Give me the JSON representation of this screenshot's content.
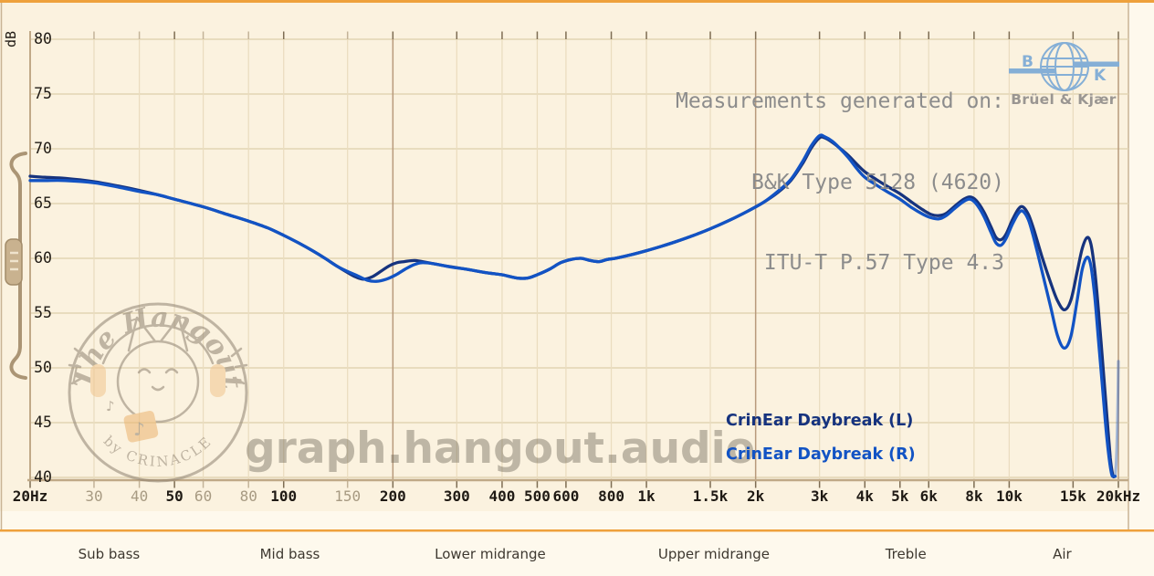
{
  "header": {
    "measurement_info_lines": [
      "Measurements generated on:",
      "B&K Type 5128 (4620)",
      "ITU-T P.57 Type 4.3"
    ]
  },
  "branding": {
    "bk": {
      "letter_left": "B",
      "letter_right": "K",
      "name": "Brüel & Kjær",
      "color": "#85AFD6"
    },
    "watermark_url": "graph.hangout.audio",
    "logo": {
      "arc_text": "The Hangout",
      "sub_text": "by CRINACLE"
    }
  },
  "legend": [
    {
      "label": "CrinEar Daybreak (L)",
      "color": "#16337E"
    },
    {
      "label": "CrinEar Daybreak (R)",
      "color": "#1253C4"
    }
  ],
  "colors": {
    "page_bg": "#FEF9ED",
    "chart_bg": "#FBF2DF",
    "accent_orange": "#EEA13C",
    "axis": "#C0A987",
    "border_tan": "#C9B495",
    "grid_h": "#E2D4B4",
    "grid_minor": "#EADCBF",
    "grid_decade": "#B89A7C",
    "tick_emph": "#7D6C52",
    "tick_minor": "#C3B398"
  },
  "chart_data": {
    "type": "line",
    "title": "",
    "xlabel": "",
    "ylabel": "dB",
    "x_scale": "log",
    "xlim_hz": [
      20,
      20000
    ],
    "ylim": [
      40,
      80
    ],
    "grid": true,
    "y_ticks": [
      80,
      75,
      70,
      65,
      60,
      55,
      50,
      45,
      40
    ],
    "x_ticks": [
      {
        "hz": 20,
        "label": "20Hz",
        "emph": true
      },
      {
        "hz": 30,
        "label": "30",
        "emph": false
      },
      {
        "hz": 40,
        "label": "40",
        "emph": false
      },
      {
        "hz": 50,
        "label": "50",
        "emph": true
      },
      {
        "hz": 60,
        "label": "60",
        "emph": false
      },
      {
        "hz": 80,
        "label": "80",
        "emph": false
      },
      {
        "hz": 100,
        "label": "100",
        "emph": true
      },
      {
        "hz": 150,
        "label": "150",
        "emph": false
      },
      {
        "hz": 200,
        "label": "200",
        "emph": true
      },
      {
        "hz": 300,
        "label": "300",
        "emph": true
      },
      {
        "hz": 400,
        "label": "400",
        "emph": true
      },
      {
        "hz": 500,
        "label": "500",
        "emph": true
      },
      {
        "hz": 600,
        "label": "600",
        "emph": true
      },
      {
        "hz": 800,
        "label": "800",
        "emph": true
      },
      {
        "hz": 1000,
        "label": "1k",
        "emph": true
      },
      {
        "hz": 1500,
        "label": "1.5k",
        "emph": true
      },
      {
        "hz": 2000,
        "label": "2k",
        "emph": true
      },
      {
        "hz": 3000,
        "label": "3k",
        "emph": true
      },
      {
        "hz": 4000,
        "label": "4k",
        "emph": true
      },
      {
        "hz": 5000,
        "label": "5k",
        "emph": true
      },
      {
        "hz": 6000,
        "label": "6k",
        "emph": true
      },
      {
        "hz": 8000,
        "label": "8k",
        "emph": true
      },
      {
        "hz": 10000,
        "label": "10k",
        "emph": true
      },
      {
        "hz": 15000,
        "label": "15k",
        "emph": true
      },
      {
        "hz": 20000,
        "label": "20kHz",
        "emph": true
      }
    ],
    "decade_lines_hz": [
      200,
      2000,
      20000
    ],
    "bands": [
      {
        "label": "Sub bass",
        "hz": 33
      },
      {
        "label": "Mid bass",
        "hz": 104
      },
      {
        "label": "Lower midrange",
        "hz": 371
      },
      {
        "label": "Upper midrange",
        "hz": 1534
      },
      {
        "label": "Treble",
        "hz": 5190
      },
      {
        "label": "Air",
        "hz": 14000
      }
    ],
    "series": [
      {
        "name": "CrinEar Daybreak (L)",
        "channel": "L",
        "color": "#16337E",
        "points": [
          [
            20,
            67.5
          ],
          [
            22,
            67.4
          ],
          [
            25,
            67.3
          ],
          [
            30,
            67.0
          ],
          [
            35,
            66.6
          ],
          [
            40,
            66.2
          ],
          [
            45,
            65.8
          ],
          [
            50,
            65.4
          ],
          [
            60,
            64.7
          ],
          [
            70,
            64.0
          ],
          [
            80,
            63.4
          ],
          [
            90,
            62.8
          ],
          [
            100,
            62.1
          ],
          [
            110,
            61.4
          ],
          [
            120,
            60.7
          ],
          [
            130,
            60.0
          ],
          [
            140,
            59.3
          ],
          [
            150,
            58.7
          ],
          [
            158,
            58.3
          ],
          [
            166,
            58.1
          ],
          [
            175,
            58.3
          ],
          [
            185,
            58.8
          ],
          [
            195,
            59.3
          ],
          [
            205,
            59.6
          ],
          [
            215,
            59.7
          ],
          [
            230,
            59.8
          ],
          [
            250,
            59.6
          ],
          [
            280,
            59.3
          ],
          [
            320,
            59.0
          ],
          [
            360,
            58.7
          ],
          [
            400,
            58.5
          ],
          [
            440,
            58.2
          ],
          [
            470,
            58.2
          ],
          [
            500,
            58.5
          ],
          [
            540,
            59.0
          ],
          [
            580,
            59.6
          ],
          [
            620,
            59.9
          ],
          [
            660,
            60.0
          ],
          [
            700,
            59.8
          ],
          [
            740,
            59.7
          ],
          [
            780,
            59.9
          ],
          [
            820,
            60.0
          ],
          [
            900,
            60.3
          ],
          [
            1000,
            60.7
          ],
          [
            1100,
            61.1
          ],
          [
            1200,
            61.5
          ],
          [
            1350,
            62.1
          ],
          [
            1500,
            62.7
          ],
          [
            1700,
            63.5
          ],
          [
            1900,
            64.3
          ],
          [
            2100,
            65.1
          ],
          [
            2300,
            66.0
          ],
          [
            2500,
            67.1
          ],
          [
            2700,
            68.7
          ],
          [
            2850,
            70.1
          ],
          [
            3000,
            71.0
          ],
          [
            3100,
            71.0
          ],
          [
            3250,
            70.6
          ],
          [
            3400,
            70.1
          ],
          [
            3600,
            69.4
          ],
          [
            3800,
            68.6
          ],
          [
            4000,
            67.9
          ],
          [
            4300,
            67.2
          ],
          [
            4600,
            66.6
          ],
          [
            5000,
            65.9
          ],
          [
            5400,
            65.1
          ],
          [
            5800,
            64.4
          ],
          [
            6100,
            64.0
          ],
          [
            6400,
            63.9
          ],
          [
            6700,
            64.1
          ],
          [
            7100,
            64.8
          ],
          [
            7500,
            65.4
          ],
          [
            7800,
            65.6
          ],
          [
            8100,
            65.3
          ],
          [
            8500,
            64.3
          ],
          [
            8900,
            62.9
          ],
          [
            9200,
            61.9
          ],
          [
            9500,
            61.7
          ],
          [
            9800,
            62.2
          ],
          [
            10200,
            63.5
          ],
          [
            10600,
            64.5
          ],
          [
            10900,
            64.7
          ],
          [
            11300,
            64.0
          ],
          [
            11700,
            62.6
          ],
          [
            12300,
            60.2
          ],
          [
            13000,
            57.8
          ],
          [
            13600,
            56.1
          ],
          [
            14200,
            55.3
          ],
          [
            14800,
            56.2
          ],
          [
            15400,
            58.8
          ],
          [
            15900,
            60.9
          ],
          [
            16400,
            61.9
          ],
          [
            16800,
            61.3
          ],
          [
            17200,
            59.0
          ],
          [
            17600,
            55.5
          ],
          [
            18100,
            50.5
          ],
          [
            18600,
            45.5
          ],
          [
            19000,
            41.8
          ],
          [
            19300,
            40.2
          ],
          [
            19500,
            40.1
          ]
        ]
      },
      {
        "name": "CrinEar Daybreak (R)",
        "channel": "R",
        "color": "#1253C4",
        "points": [
          [
            20,
            67.1
          ],
          [
            22,
            67.1
          ],
          [
            25,
            67.1
          ],
          [
            30,
            66.9
          ],
          [
            35,
            66.5
          ],
          [
            40,
            66.1
          ],
          [
            45,
            65.8
          ],
          [
            50,
            65.4
          ],
          [
            60,
            64.7
          ],
          [
            70,
            64.0
          ],
          [
            80,
            63.4
          ],
          [
            90,
            62.8
          ],
          [
            100,
            62.1
          ],
          [
            110,
            61.4
          ],
          [
            120,
            60.7
          ],
          [
            130,
            60.0
          ],
          [
            140,
            59.3
          ],
          [
            150,
            58.8
          ],
          [
            160,
            58.4
          ],
          [
            170,
            58.0
          ],
          [
            180,
            57.9
          ],
          [
            192,
            58.1
          ],
          [
            204,
            58.5
          ],
          [
            216,
            59.0
          ],
          [
            228,
            59.4
          ],
          [
            240,
            59.6
          ],
          [
            260,
            59.5
          ],
          [
            290,
            59.2
          ],
          [
            320,
            59.0
          ],
          [
            360,
            58.7
          ],
          [
            400,
            58.5
          ],
          [
            440,
            58.2
          ],
          [
            470,
            58.2
          ],
          [
            500,
            58.5
          ],
          [
            540,
            59.0
          ],
          [
            580,
            59.6
          ],
          [
            620,
            59.9
          ],
          [
            660,
            60.0
          ],
          [
            700,
            59.8
          ],
          [
            740,
            59.7
          ],
          [
            780,
            59.9
          ],
          [
            820,
            60.0
          ],
          [
            900,
            60.3
          ],
          [
            1000,
            60.7
          ],
          [
            1100,
            61.1
          ],
          [
            1200,
            61.5
          ],
          [
            1350,
            62.1
          ],
          [
            1500,
            62.7
          ],
          [
            1700,
            63.5
          ],
          [
            1900,
            64.3
          ],
          [
            2100,
            65.1
          ],
          [
            2300,
            66.1
          ],
          [
            2500,
            67.2
          ],
          [
            2700,
            68.9
          ],
          [
            2850,
            70.3
          ],
          [
            3000,
            71.2
          ],
          [
            3100,
            71.1
          ],
          [
            3250,
            70.7
          ],
          [
            3400,
            70.1
          ],
          [
            3600,
            69.2
          ],
          [
            3800,
            68.2
          ],
          [
            4000,
            67.4
          ],
          [
            4300,
            66.7
          ],
          [
            4600,
            66.1
          ],
          [
            5000,
            65.4
          ],
          [
            5400,
            64.6
          ],
          [
            5800,
            64.0
          ],
          [
            6100,
            63.7
          ],
          [
            6400,
            63.6
          ],
          [
            6700,
            63.9
          ],
          [
            7100,
            64.6
          ],
          [
            7500,
            65.2
          ],
          [
            7800,
            65.4
          ],
          [
            8100,
            65.0
          ],
          [
            8500,
            63.9
          ],
          [
            8900,
            62.4
          ],
          [
            9200,
            61.4
          ],
          [
            9500,
            61.2
          ],
          [
            9800,
            61.8
          ],
          [
            10200,
            63.1
          ],
          [
            10600,
            64.1
          ],
          [
            10900,
            64.3
          ],
          [
            11300,
            63.5
          ],
          [
            11700,
            61.8
          ],
          [
            12300,
            58.9
          ],
          [
            13000,
            55.6
          ],
          [
            13600,
            52.9
          ],
          [
            14200,
            51.8
          ],
          [
            14800,
            52.9
          ],
          [
            15400,
            56.2
          ],
          [
            15900,
            59.0
          ],
          [
            16400,
            60.1
          ],
          [
            16800,
            59.3
          ],
          [
            17200,
            56.6
          ],
          [
            17600,
            52.8
          ],
          [
            18100,
            48.0
          ],
          [
            18600,
            43.5
          ],
          [
            19100,
            40.5
          ],
          [
            19400,
            40.1
          ],
          [
            19600,
            40.1
          ]
        ],
        "fade_tail_points": [
          [
            19600,
            40.1
          ],
          [
            19750,
            41.8
          ],
          [
            19900,
            45.8
          ],
          [
            20000,
            50.6
          ]
        ],
        "fade_opacity": 0.38
      }
    ]
  }
}
